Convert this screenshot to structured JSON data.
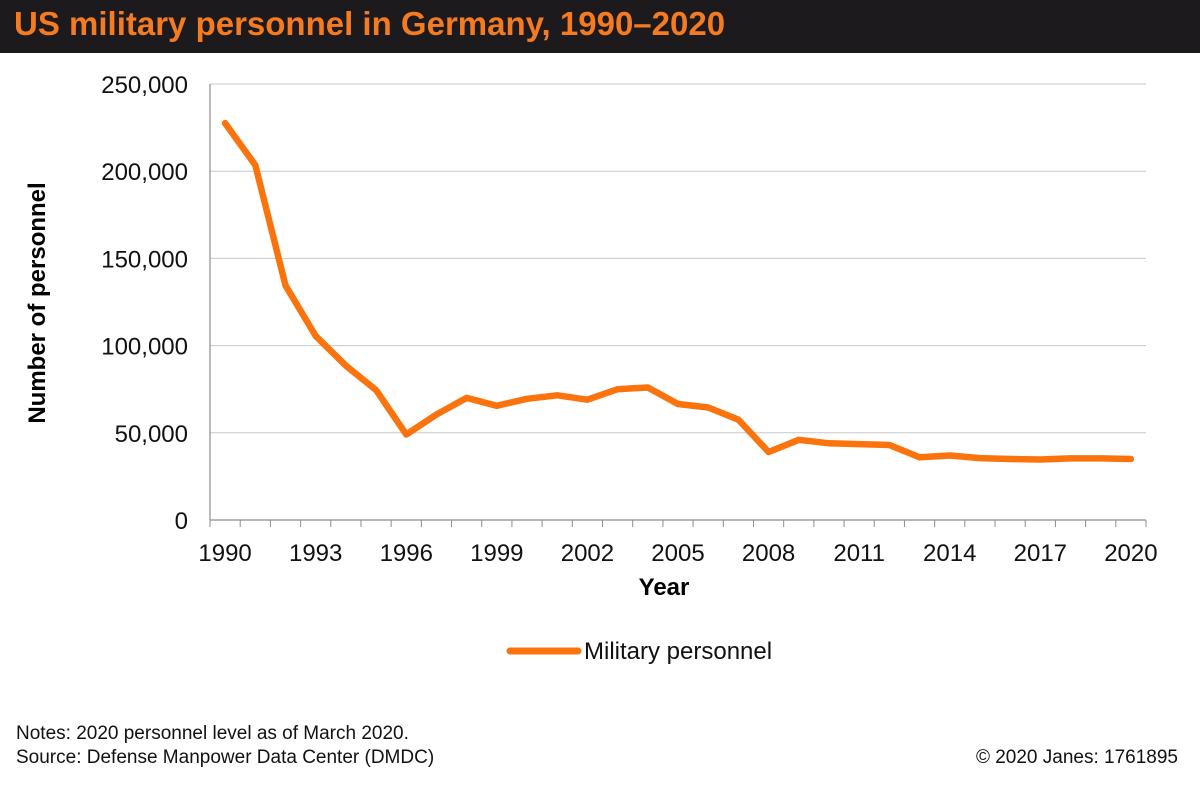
{
  "header": {
    "title": "US military personnel in Germany, 1990–2020"
  },
  "chart_data": {
    "type": "line",
    "title": "US military personnel in Germany, 1990–2020",
    "xlabel": "Year",
    "ylabel": "Number of personnel",
    "ylim": [
      0,
      250000
    ],
    "yticks": [
      0,
      50000,
      100000,
      150000,
      200000,
      250000
    ],
    "ytick_labels": [
      "0",
      "50,000",
      "100,000",
      "150,000",
      "200,000",
      "250,000"
    ],
    "xlim": [
      1989.5,
      2020.5
    ],
    "xticks": [
      1990,
      1993,
      1996,
      1999,
      2002,
      2005,
      2008,
      2011,
      2014,
      2017,
      2020
    ],
    "xtick_labels": [
      "1990",
      "1993",
      "1996",
      "1999",
      "2002",
      "2005",
      "2008",
      "2011",
      "2014",
      "2017",
      "2020"
    ],
    "grid": "horizontal",
    "legend_position": "bottom",
    "color": "#fb730d",
    "series": [
      {
        "name": "Military personnel",
        "x": [
          1990,
          1991,
          1992,
          1993,
          1994,
          1995,
          1996,
          1997,
          1998,
          1999,
          2000,
          2001,
          2002,
          2003,
          2004,
          2005,
          2006,
          2007,
          2008,
          2009,
          2010,
          2011,
          2012,
          2013,
          2014,
          2015,
          2016,
          2017,
          2018,
          2019,
          2020
        ],
        "values": [
          227500,
          203500,
          134500,
          105500,
          88500,
          74500,
          49000,
          60500,
          70000,
          65500,
          69500,
          71500,
          69000,
          75000,
          76000,
          66500,
          64500,
          57500,
          39000,
          46000,
          44000,
          43500,
          43000,
          36000,
          37000,
          35500,
          35000,
          34700,
          35300,
          35300,
          35000
        ]
      }
    ]
  },
  "notes": {
    "line1": "Notes: 2020 personnel level as of March 2020.",
    "line2": "Source: Defense Manpower Data Center (DMDC)"
  },
  "copyright": "© 2020 Janes: 1761895"
}
